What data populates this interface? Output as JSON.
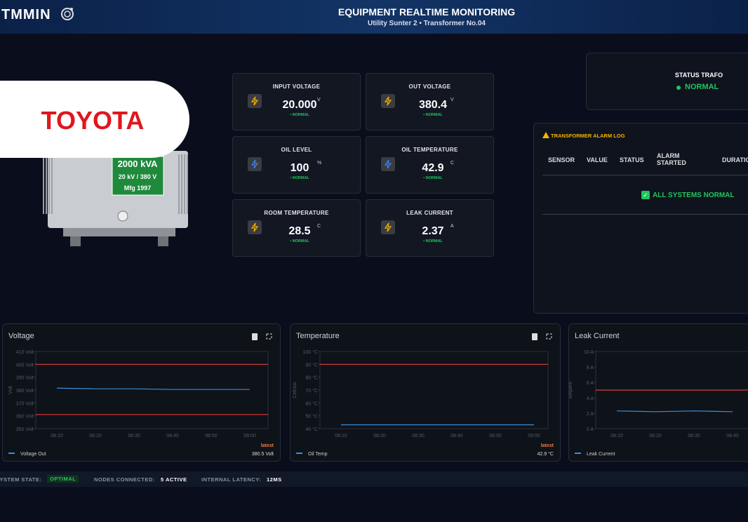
{
  "header": {
    "logo": "TMMIN",
    "title": "EQUIPMENT REALTIME MONITORING",
    "subtitle": "Utility Sunter 2 • Transformer No.04"
  },
  "brand": "TOYOTA",
  "nameplate": [
    "2000 kVA",
    "20 kV / 380 V",
    "Mfg 1997"
  ],
  "cards": [
    {
      "label": "INPUT VOLTAGE",
      "value": "20.000",
      "unit": "V",
      "status": "• NORMAL"
    },
    {
      "label": "OUT VOLTAGE",
      "value": "380.4",
      "unit": "V",
      "status": "• NORMAL"
    },
    {
      "label": "OIL LEVEL",
      "value": "100",
      "unit": "%",
      "status": "• NORMAL"
    },
    {
      "label": "OIL TEMPERATURE",
      "value": "42.9",
      "unit": "C",
      "status": "• NORMAL"
    },
    {
      "label": "ROOM TEMPERATURE",
      "value": "28.5",
      "unit": "C",
      "status": "• NORMAL"
    },
    {
      "label": "LEAK CURRENT",
      "value": "2.37",
      "unit": "A",
      "status": "• NORMAL"
    }
  ],
  "status_trafo": {
    "label": "STATUS TRAFO",
    "value": "NORMAL"
  },
  "alarm_log": {
    "title": "TRANSFORMER ALARM LOG",
    "columns": [
      "SENSOR",
      "VALUE",
      "STATUS",
      "ALARM STARTED",
      "DURATION"
    ],
    "message": "ALL SYSTEMS NORMAL"
  },
  "footer": {
    "state_label": "SYSTEM STATE:",
    "state": "OPTIMAL",
    "nodes_label": "NODES CONNECTED:",
    "nodes": "5 ACTIVE",
    "latency_label": "INTERNAL LATENCY:",
    "latency": "12MS"
  },
  "chart_data": [
    {
      "type": "line",
      "title": "Voltage",
      "y_label": "Volt",
      "categories": [
        "08:10",
        "08:20",
        "08:30",
        "08:40",
        "08:50",
        "09:00"
      ],
      "series": [
        {
          "name": "Voltage Out",
          "color": "#3b8fd9",
          "values": [
            381.5,
            381,
            381,
            380.5,
            380.5,
            380.5
          ]
        }
      ],
      "thresholds": [
        400,
        361
      ],
      "threshold_color": "#e23b3b",
      "ylim": [
        350,
        410
      ],
      "yticks": [
        {
          "value": 350,
          "label": "350 Volt"
        },
        {
          "value": 360,
          "label": "360 Volt"
        },
        {
          "value": 370,
          "label": "370 Volt"
        },
        {
          "value": 380,
          "label": "380 Volt"
        },
        {
          "value": 390,
          "label": "390 Volt"
        },
        {
          "value": 400,
          "label": "400 Volt"
        },
        {
          "value": 410,
          "label": "410 Volt"
        }
      ],
      "latest_label": "latest",
      "latest_value": "380.5 Volt"
    },
    {
      "type": "line",
      "title": "Temperature",
      "y_label": "Celcius",
      "categories": [
        "08:10",
        "08:20",
        "08:30",
        "08:40",
        "08:50",
        "09:00"
      ],
      "series": [
        {
          "name": "Oil Temp",
          "color": "#3b8fd9",
          "values": [
            43,
            43,
            43,
            43,
            43,
            43
          ]
        }
      ],
      "thresholds": [
        90
      ],
      "threshold_color": "#e23b3b",
      "ylim": [
        40,
        100
      ],
      "yticks": [
        {
          "value": 40,
          "label": "40 °C"
        },
        {
          "value": 50,
          "label": "50 °C"
        },
        {
          "value": 60,
          "label": "60 °C"
        },
        {
          "value": 70,
          "label": "70 °C"
        },
        {
          "value": 80,
          "label": "80 °C"
        },
        {
          "value": 90,
          "label": "90 °C"
        },
        {
          "value": 100,
          "label": "100 °C"
        }
      ],
      "latest_label": "latest",
      "latest_value": "42.9 °C"
    },
    {
      "type": "line",
      "title": "Leak Current",
      "y_label": "Ampere",
      "categories": [
        "08:10",
        "08:20",
        "08:30",
        "08:40"
      ],
      "series": [
        {
          "name": "Leak Current",
          "color": "#3b8fd9",
          "values": [
            2.3,
            2.2,
            2.3,
            2.2
          ]
        }
      ],
      "thresholds": [
        5
      ],
      "threshold_color": "#e23b3b",
      "ylim": [
        0,
        10
      ],
      "yticks": [
        {
          "value": 0,
          "label": "0 A"
        },
        {
          "value": 2,
          "label": "2 A"
        },
        {
          "value": 4,
          "label": "4 A"
        },
        {
          "value": 6,
          "label": "6 A"
        },
        {
          "value": 8,
          "label": "8 A"
        },
        {
          "value": 10,
          "label": "10 A"
        }
      ]
    }
  ]
}
